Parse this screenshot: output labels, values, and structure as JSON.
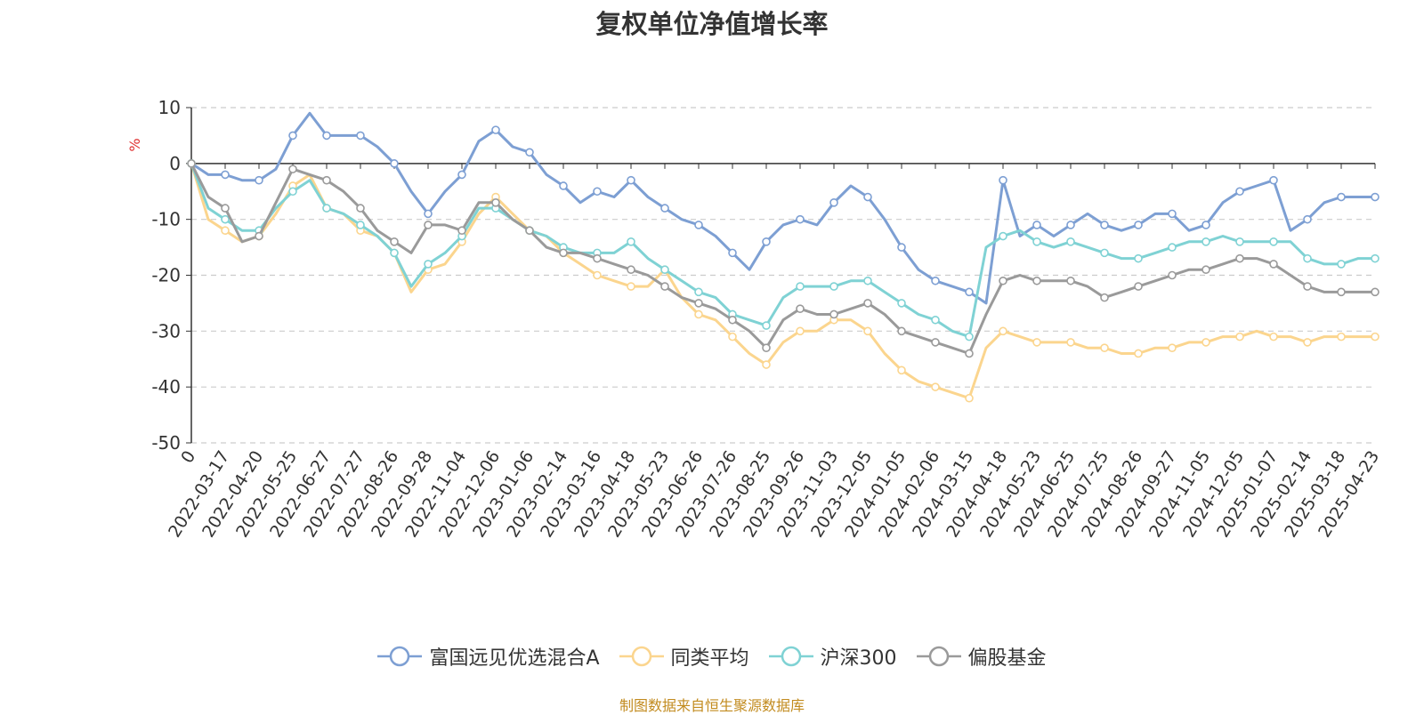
{
  "chart_data": {
    "type": "line",
    "title": "复权单位净值增长率",
    "ylabel": "%",
    "ylim": [
      -50,
      10
    ],
    "yticks": [
      10,
      0,
      -10,
      -20,
      -30,
      -40,
      -50
    ],
    "grid": true,
    "legend_position": "bottom",
    "x_tick_labels": [
      "0",
      "2022-03-17",
      "2022-04-20",
      "2022-05-25",
      "2022-06-27",
      "2022-07-27",
      "2022-08-26",
      "2022-09-28",
      "2022-11-04",
      "2022-12-06",
      "2023-01-06",
      "2023-02-14",
      "2023-03-16",
      "2023-04-18",
      "2023-05-23",
      "2023-06-26",
      "2023-07-26",
      "2023-08-25",
      "2023-09-26",
      "2023-11-03",
      "2023-12-05",
      "2024-01-05",
      "2024-02-06",
      "2024-03-15",
      "2024-04-18",
      "2024-05-23",
      "2024-06-25",
      "2024-07-25",
      "2024-08-26",
      "2024-09-27",
      "2024-11-05",
      "2024-12-05",
      "2025-01-07",
      "2025-02-14",
      "2025-03-18",
      "2025-04-23"
    ],
    "x": [
      0,
      0.5,
      1,
      1.5,
      2,
      2.5,
      3,
      3.5,
      4,
      4.5,
      5,
      5.5,
      6,
      6.5,
      7,
      7.5,
      8,
      8.5,
      9,
      9.5,
      10,
      10.5,
      11,
      11.5,
      12,
      12.5,
      13,
      13.5,
      14,
      14.5,
      15,
      15.5,
      16,
      16.5,
      17,
      17.5,
      18,
      18.5,
      19,
      19.5,
      20,
      20.5,
      21,
      21.5,
      22,
      22.5,
      23,
      23.5,
      24,
      24.5,
      25,
      25.5,
      26,
      26.5,
      27,
      27.5,
      28,
      28.5,
      29,
      29.5,
      30,
      30.5,
      31,
      31.5,
      32,
      32.5,
      33,
      33.5,
      34,
      34.5,
      35
    ],
    "series": [
      {
        "name": "富国远见优选混合A",
        "color": "#7d9fd3",
        "values": [
          0,
          -2,
          -2,
          -3,
          -3,
          -1,
          5,
          9,
          5,
          5,
          5,
          3,
          0,
          -5,
          -9,
          -5,
          -2,
          4,
          6,
          3,
          2,
          -2,
          -4,
          -7,
          -5,
          -6,
          -3,
          -6,
          -8,
          -10,
          -11,
          -13,
          -16,
          -19,
          -14,
          -11,
          -10,
          -11,
          -7,
          -4,
          -6,
          -10,
          -15,
          -19,
          -21,
          -22,
          -23,
          -25,
          -3,
          -13,
          -11,
          -13,
          -11,
          -9,
          -11,
          -12,
          -11,
          -9,
          -9,
          -12,
          -11,
          -7,
          -5,
          -4,
          -3,
          -12,
          -10,
          -7,
          -6,
          -6,
          -6
        ]
      },
      {
        "name": "同类平均",
        "color": "#fbd58e",
        "values": [
          0,
          -10,
          -12,
          -14,
          -13,
          -9,
          -4,
          -2,
          -8,
          -9,
          -12,
          -13,
          -16,
          -23,
          -19,
          -18,
          -14,
          -9,
          -6,
          -9,
          -12,
          -13,
          -16,
          -18,
          -20,
          -21,
          -22,
          -22,
          -19,
          -24,
          -27,
          -28,
          -31,
          -34,
          -36,
          -32,
          -30,
          -30,
          -28,
          -28,
          -30,
          -34,
          -37,
          -39,
          -40,
          -41,
          -42,
          -33,
          -30,
          -31,
          -32,
          -32,
          -32,
          -33,
          -33,
          -34,
          -34,
          -33,
          -33,
          -32,
          -32,
          -31,
          -31,
          -30,
          -31,
          -31,
          -32,
          -31,
          -31,
          -31,
          -31
        ]
      },
      {
        "name": "沪深300",
        "color": "#7fd2d4",
        "values": [
          0,
          -8,
          -10,
          -12,
          -12,
          -8,
          -5,
          -3,
          -8,
          -9,
          -11,
          -13,
          -16,
          -22,
          -18,
          -16,
          -13,
          -8,
          -8,
          -10,
          -12,
          -13,
          -15,
          -16,
          -16,
          -16,
          -14,
          -17,
          -19,
          -21,
          -23,
          -24,
          -27,
          -28,
          -29,
          -24,
          -22,
          -22,
          -22,
          -21,
          -21,
          -23,
          -25,
          -27,
          -28,
          -30,
          -31,
          -15,
          -13,
          -12,
          -14,
          -15,
          -14,
          -15,
          -16,
          -17,
          -17,
          -16,
          -15,
          -14,
          -14,
          -13,
          -14,
          -14,
          -14,
          -14,
          -17,
          -18,
          -18,
          -17,
          -17
        ]
      },
      {
        "name": "偏股基金",
        "color": "#9a9a9a",
        "values": [
          0,
          -6,
          -8,
          -14,
          -13,
          -7,
          -1,
          -2,
          -3,
          -5,
          -8,
          -12,
          -14,
          -16,
          -11,
          -11,
          -12,
          -7,
          -7,
          -10,
          -12,
          -15,
          -16,
          -16,
          -17,
          -18,
          -19,
          -20,
          -22,
          -24,
          -25,
          -26,
          -28,
          -30,
          -33,
          -28,
          -26,
          -27,
          -27,
          -26,
          -25,
          -27,
          -30,
          -31,
          -32,
          -33,
          -34,
          -27,
          -21,
          -20,
          -21,
          -21,
          -21,
          -22,
          -24,
          -23,
          -22,
          -21,
          -20,
          -19,
          -19,
          -18,
          -17,
          -17,
          -18,
          -20,
          -22,
          -23,
          -23,
          -23,
          -23
        ]
      }
    ]
  },
  "footer": {
    "source": "制图数据来自恒生聚源数据库"
  }
}
